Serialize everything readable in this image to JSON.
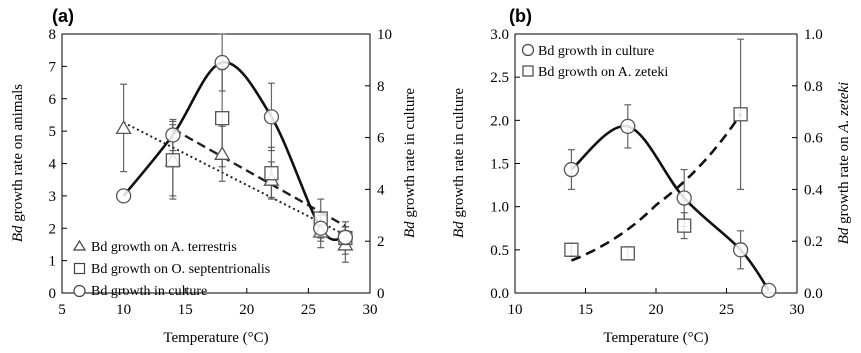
{
  "chart_data": [
    {
      "type": "scatter",
      "panel_label": "(a)",
      "xlabel": "Temperature (°C)",
      "ylabel_left_italic": "Bd",
      "ylabel_left_rest": " growth rate on animals",
      "ylabel_right_italic": "Bd",
      "ylabel_right_rest": " growth rate in culture",
      "xlim": [
        5,
        30
      ],
      "ylim_left": [
        0,
        8
      ],
      "ylim_right": [
        0,
        10
      ],
      "xticks": [
        5,
        10,
        15,
        20,
        25,
        30
      ],
      "yticks_left": [
        0,
        1,
        2,
        3,
        4,
        5,
        6,
        7,
        8
      ],
      "yticks_right": [
        0,
        2,
        4,
        6,
        8,
        10
      ],
      "legend_position": "bottom-left",
      "series": [
        {
          "name": "Bd growth on A. terrestris",
          "marker": "triangle",
          "axis": "left",
          "fit": "dotted-line",
          "x": [
            10,
            14,
            18,
            22,
            26,
            28
          ],
          "y": [
            5.1,
            4.1,
            4.3,
            3.5,
            1.9,
            1.5
          ],
          "err": [
            1.35,
            1.2,
            0.85,
            0.55,
            0.5,
            0.55
          ]
        },
        {
          "name": "Bd growth on O. septentrionalis",
          "marker": "square",
          "axis": "left",
          "fit": "dashed-line",
          "x": [
            14,
            18,
            22,
            26,
            28
          ],
          "y": [
            4.1,
            5.4,
            3.7,
            2.3,
            1.7
          ],
          "err": [
            1.1,
            1.5,
            0.8,
            0.6,
            0.5
          ]
        },
        {
          "name": "Bd growth in culture",
          "marker": "circle",
          "axis": "right",
          "fit": "solid-curve",
          "x": [
            10,
            14,
            18,
            22,
            26,
            28
          ],
          "y": [
            3.75,
            6.1,
            8.9,
            6.8,
            2.5,
            2.15
          ],
          "err": [
            0,
            0.6,
            1.1,
            1.3,
            0.5,
            0.4
          ]
        }
      ]
    },
    {
      "type": "scatter",
      "panel_label": "(b)",
      "xlabel": "Temperature (°C)",
      "ylabel_left_italic": "Bd",
      "ylabel_left_rest": " growth rate in culture",
      "ylabel_right_italic_1": "Bd",
      "ylabel_right_rest": " growth rate on ",
      "ylabel_right_italic_2": "A. zeteki",
      "xlim": [
        10,
        30
      ],
      "ylim_left": [
        0,
        3.0
      ],
      "ylim_right": [
        0,
        1.0
      ],
      "xticks": [
        10,
        15,
        20,
        25,
        30
      ],
      "yticks_left": [
        "0.0",
        "0.5",
        "1.0",
        "1.5",
        "2.0",
        "2.5",
        "3.0"
      ],
      "yticks_right": [
        "0.0",
        "0.2",
        "0.4",
        "0.6",
        "0.8",
        "1.0"
      ],
      "legend_position": "top-left",
      "series": [
        {
          "name": "Bd growth in culture",
          "marker": "circle",
          "axis": "left",
          "fit": "solid-curve",
          "x": [
            14,
            18,
            22,
            26,
            28
          ],
          "y": [
            1.43,
            1.93,
            1.1,
            0.5,
            0.03
          ],
          "err": [
            0.23,
            0.25,
            0.33,
            0.22,
            0
          ]
        },
        {
          "name": "Bd growth on A. zeteki",
          "marker": "square",
          "axis": "right",
          "fit": "dashed-curve",
          "x": [
            14,
            18,
            22,
            26
          ],
          "y": [
            0.167,
            0.153,
            0.26,
            0.69
          ],
          "err": [
            0.025,
            0.025,
            0.05,
            0.29
          ]
        }
      ]
    }
  ]
}
